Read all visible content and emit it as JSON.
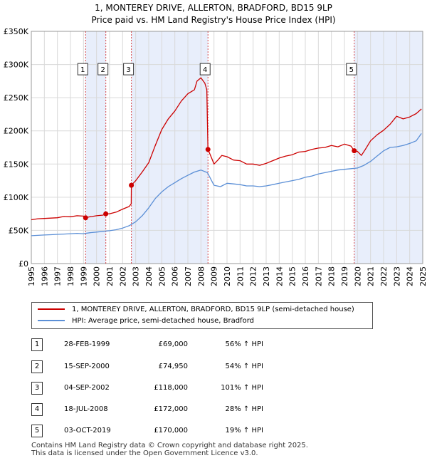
{
  "title": {
    "line1": "1, MONTEREY DRIVE, ALLERTON, BRADFORD, BD15 9LP",
    "line2": "Price paid vs. HM Land Registry's House Price Index (HPI)"
  },
  "colors": {
    "property_line": "#cc0000",
    "hpi_line": "#5b8fd6",
    "shade": "#e8eefb",
    "marker_line": "#cc0000",
    "grid": "#d9d9d9"
  },
  "chart_data": {
    "type": "line",
    "xlim": [
      1995,
      2025
    ],
    "ylim": [
      0,
      350000
    ],
    "y_ticks": [
      {
        "value": 0,
        "label": "£0"
      },
      {
        "value": 50000,
        "label": "£50K"
      },
      {
        "value": 100000,
        "label": "£100K"
      },
      {
        "value": 150000,
        "label": "£150K"
      },
      {
        "value": 200000,
        "label": "£200K"
      },
      {
        "value": 250000,
        "label": "£250K"
      },
      {
        "value": 300000,
        "label": "£300K"
      },
      {
        "value": 350000,
        "label": "£350K"
      }
    ],
    "x_ticks": [
      "1995",
      "1996",
      "1997",
      "1998",
      "1999",
      "2000",
      "2001",
      "2002",
      "2003",
      "2004",
      "2005",
      "2006",
      "2007",
      "2008",
      "2009",
      "2010",
      "2011",
      "2012",
      "2013",
      "2014",
      "2015",
      "2016",
      "2017",
      "2018",
      "2019",
      "2020",
      "2021",
      "2022",
      "2023",
      "2024",
      "2025"
    ],
    "grid": true,
    "shaded_ranges": [
      [
        1999.16,
        2000.71
      ],
      [
        2002.67,
        2008.54
      ],
      [
        2019.75,
        2025.0
      ]
    ],
    "series": [
      {
        "name": "1, MONTEREY DRIVE, ALLERTON, BRADFORD, BD15 9LP (semi-detached house)",
        "x": [
          1995.0,
          1995.5,
          1996.0,
          1996.5,
          1997.0,
          1997.5,
          1998.0,
          1998.5,
          1999.0,
          1999.16,
          1999.5,
          2000.0,
          2000.5,
          2000.71,
          2001.0,
          2001.5,
          2002.0,
          2002.5,
          2002.66,
          2002.67,
          2003.0,
          2003.5,
          2004.0,
          2004.5,
          2005.0,
          2005.5,
          2006.0,
          2006.5,
          2007.0,
          2007.5,
          2007.7,
          2008.0,
          2008.3,
          2008.45,
          2008.54,
          2008.8,
          2009.0,
          2009.3,
          2009.6,
          2010.0,
          2010.5,
          2011.0,
          2011.5,
          2012.0,
          2012.5,
          2013.0,
          2013.5,
          2014.0,
          2014.5,
          2015.0,
          2015.5,
          2016.0,
          2016.5,
          2017.0,
          2017.5,
          2018.0,
          2018.5,
          2019.0,
          2019.5,
          2019.75,
          2020.0,
          2020.3,
          2020.6,
          2021.0,
          2021.5,
          2022.0,
          2022.5,
          2023.0,
          2023.5,
          2024.0,
          2024.5,
          2024.9
        ],
        "values": [
          66000,
          67500,
          68000,
          68500,
          69000,
          71000,
          70500,
          72000,
          71500,
          69000,
          70500,
          72000,
          73000,
          74950,
          75000,
          77500,
          82000,
          86000,
          90000,
          118000,
          125000,
          138000,
          152000,
          178000,
          202000,
          218000,
          230000,
          245000,
          256000,
          262000,
          275000,
          280000,
          272000,
          262000,
          172000,
          160000,
          150000,
          156000,
          163000,
          161000,
          156000,
          155000,
          150000,
          150000,
          148000,
          151000,
          155000,
          159000,
          162000,
          164000,
          168000,
          169000,
          172000,
          174000,
          175000,
          178000,
          176000,
          180000,
          177000,
          170000,
          169000,
          163000,
          172000,
          185000,
          194000,
          201000,
          210000,
          222000,
          218000,
          221000,
          226000,
          233000
        ]
      },
      {
        "name": "HPI: Average price, semi-detached house, Bradford",
        "x": [
          1995.0,
          1995.5,
          1996.0,
          1996.5,
          1997.0,
          1997.5,
          1998.0,
          1998.5,
          1999.0,
          1999.5,
          2000.0,
          2000.5,
          2001.0,
          2001.5,
          2002.0,
          2002.5,
          2003.0,
          2003.5,
          2004.0,
          2004.5,
          2005.0,
          2005.5,
          2006.0,
          2006.5,
          2007.0,
          2007.5,
          2008.0,
          2008.5,
          2009.0,
          2009.5,
          2010.0,
          2010.5,
          2011.0,
          2011.5,
          2012.0,
          2012.5,
          2013.0,
          2013.5,
          2014.0,
          2014.5,
          2015.0,
          2015.5,
          2016.0,
          2016.5,
          2017.0,
          2017.5,
          2018.0,
          2018.5,
          2019.0,
          2019.5,
          2020.0,
          2020.5,
          2021.0,
          2021.5,
          2022.0,
          2022.5,
          2023.0,
          2023.5,
          2024.0,
          2024.5,
          2024.9
        ],
        "values": [
          42000,
          42500,
          43000,
          43500,
          44000,
          44500,
          45000,
          45500,
          45000,
          46500,
          47500,
          48500,
          49500,
          51000,
          53500,
          57000,
          63000,
          72000,
          84000,
          98000,
          108000,
          116000,
          122000,
          128000,
          133000,
          138000,
          141000,
          137000,
          118000,
          116000,
          121000,
          120000,
          119000,
          117000,
          117000,
          116000,
          117000,
          119000,
          121000,
          123000,
          125000,
          127000,
          130000,
          132000,
          135000,
          137000,
          139000,
          141000,
          142000,
          143000,
          144000,
          148000,
          154000,
          162000,
          170000,
          175000,
          176000,
          178000,
          181000,
          185000,
          196000
        ]
      }
    ],
    "sale_markers": [
      {
        "label": "1",
        "x": 1999.16,
        "y": 69000
      },
      {
        "label": "2",
        "x": 2000.71,
        "y": 74950
      },
      {
        "label": "3",
        "x": 2002.67,
        "y": 118000
      },
      {
        "label": "4",
        "x": 2008.54,
        "y": 172000
      },
      {
        "label": "5",
        "x": 2019.75,
        "y": 170000
      }
    ],
    "marker_label_y": 293000
  },
  "legend": {
    "property": "1, MONTEREY DRIVE, ALLERTON, BRADFORD, BD15 9LP (semi-detached house)",
    "hpi": "HPI: Average price, semi-detached house, Bradford"
  },
  "transactions": [
    {
      "num": "1",
      "date": "28-FEB-1999",
      "price": "£69,000",
      "hpi": "56% ↑ HPI"
    },
    {
      "num": "2",
      "date": "15-SEP-2000",
      "price": "£74,950",
      "hpi": "54% ↑ HPI"
    },
    {
      "num": "3",
      "date": "04-SEP-2002",
      "price": "£118,000",
      "hpi": "101% ↑ HPI"
    },
    {
      "num": "4",
      "date": "18-JUL-2008",
      "price": "£172,000",
      "hpi": "28% ↑ HPI"
    },
    {
      "num": "5",
      "date": "03-OCT-2019",
      "price": "£170,000",
      "hpi": "19% ↑ HPI"
    }
  ],
  "footer": {
    "line1": "Contains HM Land Registry data © Crown copyright and database right 2025.",
    "line2": "This data is licensed under the Open Government Licence v3.0."
  }
}
